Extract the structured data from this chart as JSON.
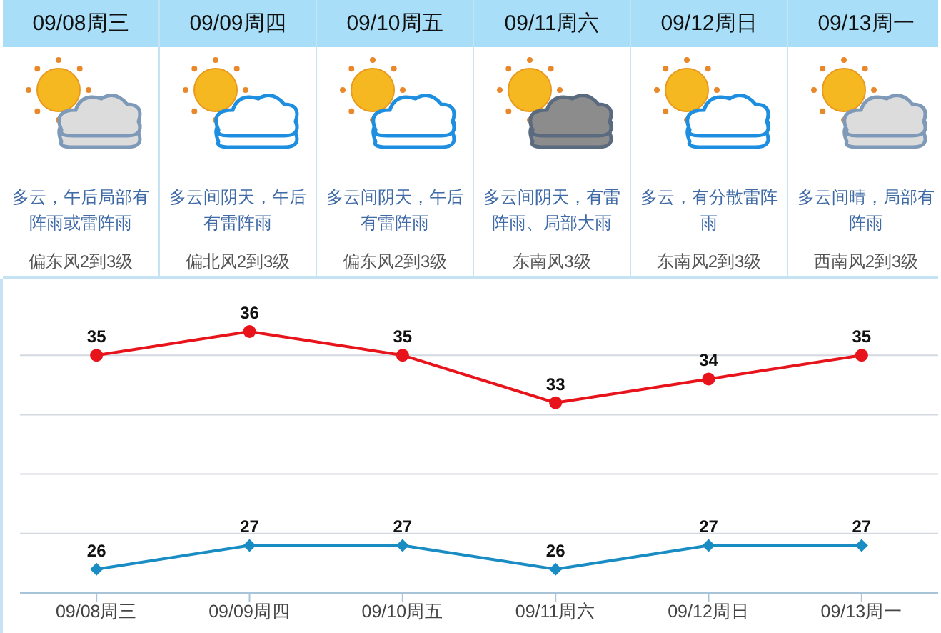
{
  "chart_data": {
    "type": "line",
    "categories": [
      "09/08周三",
      "09/09周四",
      "09/10周五",
      "09/11周六",
      "09/12周日",
      "09/13周一"
    ],
    "annotations": [
      "多云，午后局部有阵雨或雷阵雨",
      "偏东风2到3级",
      "多云间阴天，午后有雷阵雨",
      "偏北风2到3级",
      "多云间阴天，午后有雷阵雨",
      "偏东风2到3级",
      "多云间阴天，有雷阵雨、局部大雨",
      "东南风3级",
      "多云，有分散雷阵雨",
      "东南风2到3级",
      "多云间晴，局部有阵雨",
      "西南风2到3级"
    ],
    "series": [
      {
        "color": "#e8141c",
        "marker": "circle",
        "values": [
          35,
          36,
          35,
          33,
          34,
          35
        ]
      },
      {
        "color": "#1a8cc4",
        "marker": "diamond",
        "values": [
          26,
          27,
          27,
          26,
          27,
          27
        ]
      }
    ],
    "ylim": [
      25,
      37.5
    ],
    "yticks": [
      {
        "value": 25,
        "label": null
      },
      {
        "value": 27.5,
        "label": null
      },
      {
        "value": 30,
        "label": null
      },
      {
        "value": 32.5,
        "label": null
      },
      {
        "value": 35,
        "label": null
      },
      {
        "value": 37.5,
        "label": null
      }
    ],
    "grid": "y",
    "tick_labels": "x",
    "data_labels": true,
    "legend": false
  }
}
